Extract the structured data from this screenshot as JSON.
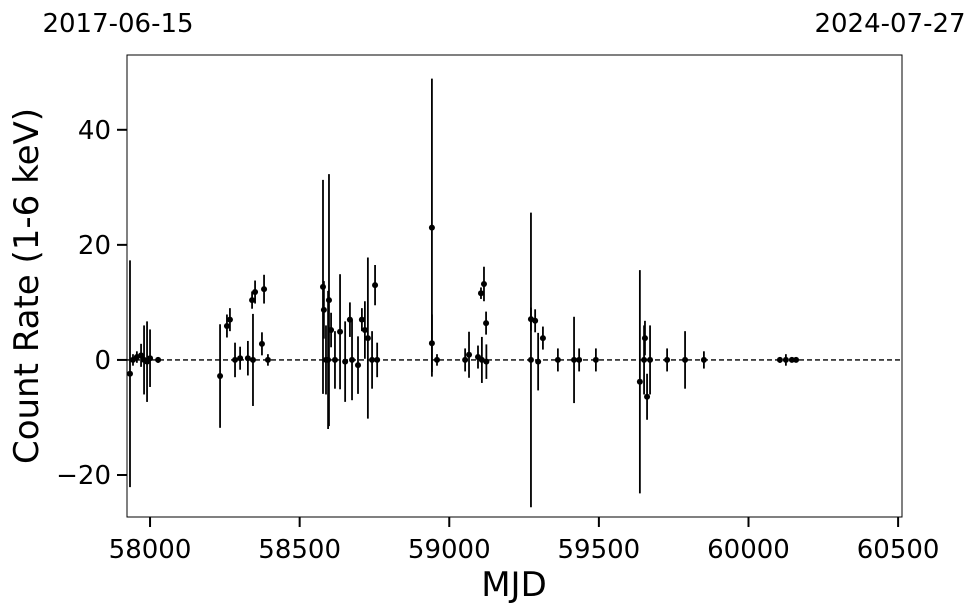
{
  "chart_data": {
    "type": "errorbar",
    "annotations": [
      "2017-06-15",
      "2024-07-27"
    ],
    "xlabel": "MJD",
    "ylabel": "Count Rate (1-6 keV)",
    "xlim": [
      57923,
      60513
    ],
    "ylim": [
      -27.3,
      53
    ],
    "xticks": [
      58000,
      58500,
      59000,
      59500,
      60000,
      60500
    ],
    "yticks": [
      {
        "value": -20,
        "label": "−20"
      },
      0,
      20,
      40
    ],
    "hline": 0,
    "series": [
      {
        "color": "#000000",
        "x": [
          57933,
          57943,
          57956,
          57970,
          57980,
          57990,
          58000,
          58027,
          58234,
          58257,
          58267,
          58284,
          58301,
          58327,
          58341,
          58351,
          58344,
          58374,
          58381,
          58394,
          58578,
          58581,
          58588,
          58598,
          58605,
          58595,
          58618,
          58635,
          58652,
          58668,
          58675,
          58695,
          58708,
          58718,
          58728,
          58742,
          58752,
          58759,
          58942,
          58942,
          58959,
          59053,
          59066,
          59096,
          59106,
          59116,
          59123,
          59109,
          59124,
          59273,
          59273,
          59287,
          59297,
          59313,
          59363,
          59417,
          59434,
          59490,
          59637,
          59651,
          59661,
          59671,
          59654,
          59728,
          59788,
          59851,
          60105,
          60125,
          60145,
          60159
        ],
        "y": [
          -2.4,
          0,
          0.5,
          0.8,
          0,
          -0.3,
          0.3,
          0,
          -2.8,
          5.9,
          7,
          0,
          0.3,
          0.3,
          10.4,
          11.8,
          0,
          2.8,
          12.3,
          0,
          12.7,
          8.7,
          0,
          10.4,
          5.2,
          0,
          0,
          4.9,
          -0.3,
          7,
          0,
          -0.9,
          7,
          5.2,
          3.8,
          0,
          13,
          0,
          23,
          2.9,
          0,
          0,
          0.9,
          0.5,
          11.6,
          13.2,
          6.4,
          0,
          -0.3,
          7.1,
          0,
          6.8,
          -0.3,
          3.8,
          0,
          0,
          0,
          0,
          -3.8,
          0,
          -6.4,
          0,
          3.8,
          0,
          0,
          0,
          0,
          0,
          0,
          0
        ],
        "yerr": [
          19.7,
          1,
          1,
          2,
          6,
          7,
          5,
          0.5,
          9,
          2,
          2,
          3,
          2,
          3,
          1.5,
          2,
          8,
          2,
          2.5,
          1,
          18.6,
          5,
          6,
          21.9,
          3,
          12,
          5,
          10,
          7,
          3,
          7,
          5,
          2,
          5,
          14,
          5,
          3.5,
          3,
          25.9,
          5,
          1,
          2,
          4,
          2,
          1,
          3,
          2,
          4,
          3,
          2,
          25.6,
          2,
          5,
          2,
          2,
          7.5,
          2,
          2,
          19.4,
          6,
          4,
          6,
          3,
          2,
          5,
          1.5,
          0.5,
          1,
          0.3,
          0.3
        ]
      }
    ]
  }
}
